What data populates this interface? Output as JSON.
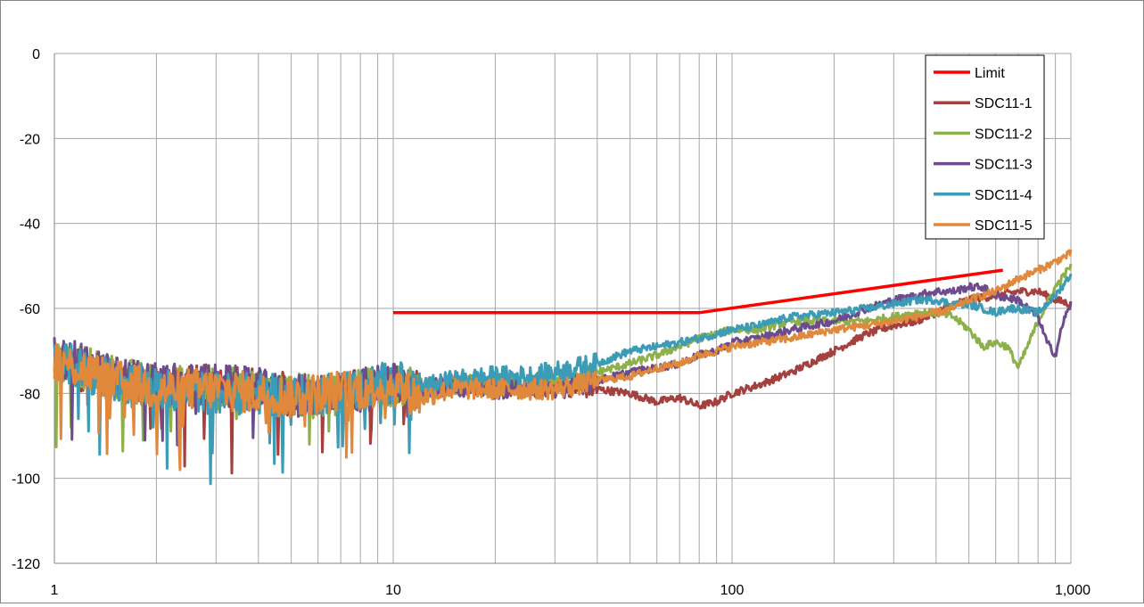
{
  "chart_data": {
    "type": "line",
    "x_scale": "log",
    "xlim": [
      1,
      1000
    ],
    "ylim": [
      -120,
      0
    ],
    "x_ticks": [
      1,
      10,
      100,
      1000
    ],
    "x_tick_labels": [
      "1",
      "10",
      "100",
      "1,000"
    ],
    "y_ticks": [
      0,
      -20,
      -40,
      -60,
      -80,
      -100,
      -120
    ],
    "y_tick_labels": [
      "0",
      "-20",
      "-40",
      "-60",
      "-80",
      "-100",
      "-120"
    ],
    "grid": true,
    "legend_position": "top-right",
    "series": [
      {
        "name": "Limit",
        "color": "#ff0000",
        "x": [
          10,
          80,
          630
        ],
        "y": [
          -61,
          -61,
          -51
        ]
      },
      {
        "name": "SDC11-1",
        "color": "#a4403e",
        "x": [
          1,
          1.5,
          2,
          3,
          4,
          5,
          6,
          8,
          10,
          12,
          15,
          20,
          25,
          30,
          40,
          50,
          60,
          70,
          80,
          90,
          100,
          120,
          150,
          200,
          250,
          300,
          350,
          400,
          450,
          500,
          600,
          700,
          800,
          900,
          1000
        ],
        "y": [
          -72,
          -77,
          -79,
          -78,
          -79,
          -80,
          -81,
          -79,
          -77,
          -79,
          -78,
          -78,
          -79,
          -78,
          -79,
          -80,
          -82,
          -81,
          -83,
          -82,
          -80,
          -78,
          -75,
          -70,
          -66,
          -64,
          -63,
          -61,
          -59,
          -58,
          -57,
          -56,
          -56,
          -58,
          -59
        ]
      },
      {
        "name": "SDC11-2",
        "color": "#8eb04b",
        "x": [
          1,
          1.5,
          2,
          3,
          4,
          5,
          6,
          8,
          10,
          12,
          15,
          20,
          25,
          30,
          40,
          50,
          60,
          70,
          80,
          90,
          100,
          120,
          150,
          200,
          250,
          300,
          350,
          400,
          450,
          500,
          550,
          600,
          650,
          700,
          800,
          900,
          1000
        ],
        "y": [
          -72,
          -76,
          -78,
          -79,
          -79,
          -80,
          -81,
          -79,
          -78,
          -79,
          -78,
          -78,
          -79,
          -77,
          -75,
          -73,
          -71,
          -69,
          -67,
          -66,
          -65,
          -65,
          -63,
          -63,
          -63,
          -62,
          -61,
          -61,
          -62,
          -65,
          -69,
          -68,
          -69,
          -74,
          -63,
          -55,
          -50
        ]
      },
      {
        "name": "SDC11-3",
        "color": "#6d4c8e",
        "x": [
          1,
          1.5,
          2,
          3,
          4,
          5,
          6,
          8,
          10,
          12,
          15,
          20,
          25,
          30,
          40,
          50,
          60,
          70,
          80,
          90,
          100,
          120,
          150,
          200,
          250,
          300,
          350,
          400,
          450,
          500,
          550,
          600,
          700,
          800,
          850,
          900,
          950,
          1000
        ],
        "y": [
          -71,
          -76,
          -78,
          -78,
          -79,
          -81,
          -80,
          -79,
          -77,
          -79,
          -78,
          -79,
          -78,
          -79,
          -77,
          -75,
          -74,
          -73,
          -71,
          -70,
          -68,
          -67,
          -65,
          -63,
          -60,
          -58,
          -57,
          -56,
          -56,
          -55,
          -55,
          -57,
          -58,
          -62,
          -68,
          -71,
          -63,
          -59
        ]
      },
      {
        "name": "SDC11-4",
        "color": "#3c9bb5",
        "x": [
          1,
          1.5,
          2,
          3,
          4,
          5,
          6,
          8,
          10,
          12,
          15,
          20,
          25,
          30,
          40,
          50,
          60,
          70,
          80,
          90,
          100,
          120,
          150,
          200,
          250,
          300,
          350,
          400,
          450,
          500,
          550,
          600,
          650,
          700,
          800,
          900,
          1000
        ],
        "y": [
          -72,
          -77,
          -79,
          -80,
          -80,
          -81,
          -80,
          -79,
          -77,
          -79,
          -77,
          -76,
          -76,
          -75,
          -73,
          -70,
          -69,
          -68,
          -67,
          -66,
          -65,
          -64,
          -62,
          -61,
          -60,
          -59,
          -58,
          -58,
          -59,
          -59,
          -60,
          -61,
          -60,
          -60,
          -61,
          -57,
          -52
        ]
      },
      {
        "name": "SDC11-5",
        "color": "#e0893c",
        "x": [
          1,
          1.5,
          2,
          3,
          4,
          5,
          6,
          8,
          10,
          12,
          15,
          20,
          25,
          30,
          40,
          50,
          60,
          70,
          80,
          90,
          100,
          120,
          150,
          200,
          250,
          300,
          350,
          400,
          450,
          500,
          600,
          700,
          800,
          900,
          1000
        ],
        "y": [
          -72,
          -77,
          -79,
          -79,
          -80,
          -81,
          -80,
          -79,
          -78,
          -81,
          -79,
          -79,
          -79,
          -79,
          -77,
          -76,
          -74,
          -73,
          -71,
          -70,
          -69,
          -68,
          -67,
          -65,
          -64,
          -63,
          -62,
          -61,
          -60,
          -58,
          -56,
          -53,
          -51,
          -49,
          -47
        ]
      }
    ]
  }
}
